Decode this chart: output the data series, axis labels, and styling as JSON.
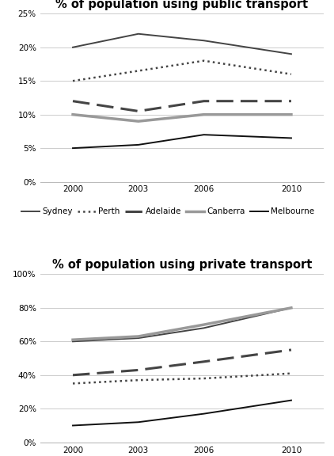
{
  "years": [
    2000,
    2003,
    2006,
    2010
  ],
  "public": {
    "title": "% of population using public transport",
    "ylim": [
      0,
      25
    ],
    "yticks": [
      0,
      5,
      10,
      15,
      20,
      25
    ],
    "ytick_labels": [
      "0%",
      "5%",
      "10%",
      "15%",
      "20%",
      "25%"
    ],
    "Sydney": [
      20,
      22,
      21,
      19
    ],
    "Perth": [
      15,
      16.5,
      18,
      16
    ],
    "Adelaide": [
      12,
      10.5,
      12,
      12
    ],
    "Canberra": [
      10,
      9,
      10,
      10
    ],
    "Melbourne": [
      5,
      5.5,
      7,
      6.5
    ]
  },
  "private": {
    "title": "% of population using private transport",
    "ylim": [
      0,
      100
    ],
    "yticks": [
      0,
      20,
      40,
      60,
      80,
      100
    ],
    "ytick_labels": [
      "0%",
      "20%",
      "40%",
      "60%",
      "80%",
      "100%"
    ],
    "Sydney": [
      60,
      62,
      68,
      80
    ],
    "Perth": [
      35,
      37,
      38,
      41
    ],
    "Adelaide": [
      40,
      43,
      48,
      55
    ],
    "Canberra": [
      61,
      63,
      70,
      80
    ],
    "Melbourne": [
      10,
      12,
      17,
      25
    ]
  },
  "cities": [
    "Sydney",
    "Perth",
    "Adelaide",
    "Canberra",
    "Melbourne"
  ],
  "line_props": {
    "Sydney": {
      "color": "#444444",
      "linestyle": "-",
      "linewidth": 1.4
    },
    "Perth": {
      "color": "#444444",
      "linestyle": ":",
      "linewidth": 1.8
    },
    "Adelaide": {
      "color": "#444444",
      "linestyle": "--",
      "linewidth": 2.2
    },
    "Canberra": {
      "color": "#999999",
      "linestyle": "-",
      "linewidth": 2.5
    },
    "Melbourne": {
      "color": "#111111",
      "linestyle": "-",
      "linewidth": 1.4
    }
  },
  "background_color": "#ffffff",
  "title_fontsize": 10.5,
  "tick_fontsize": 7.5,
  "legend_fontsize": 7.5
}
